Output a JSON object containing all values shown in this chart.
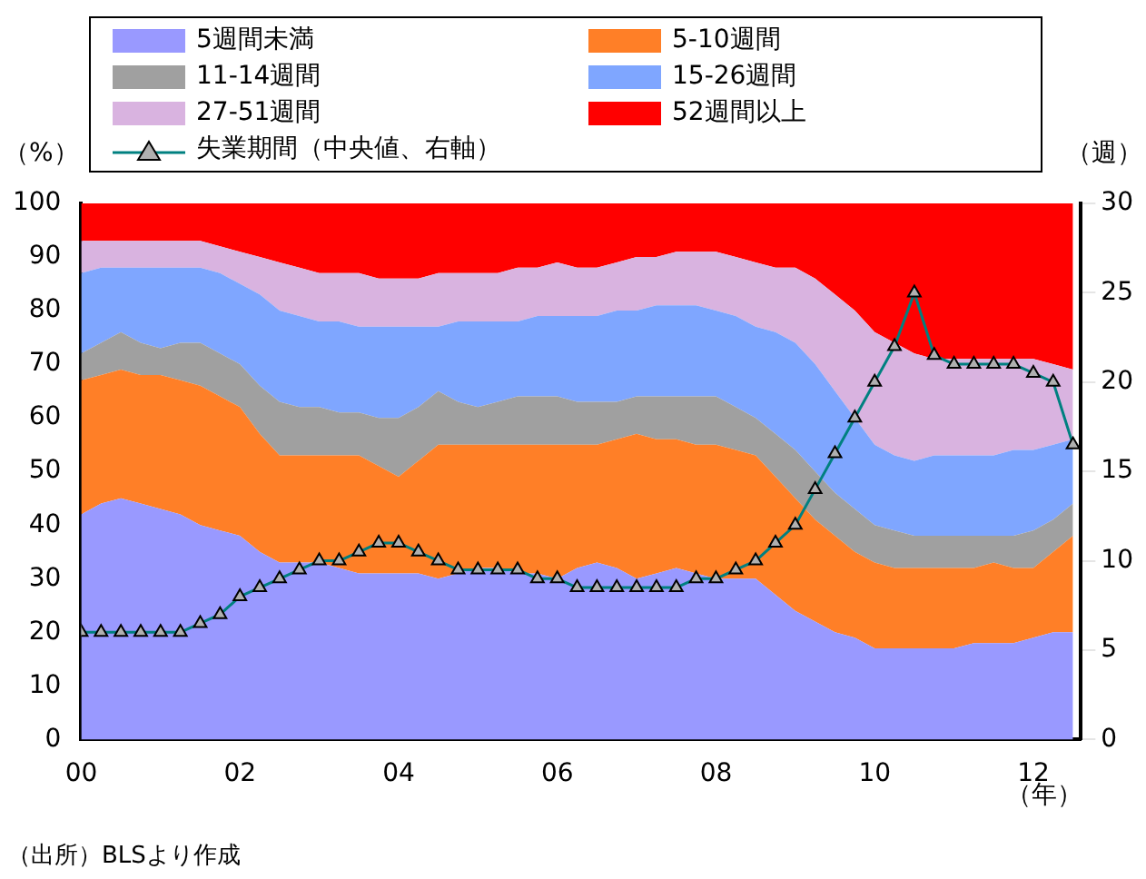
{
  "chart_data": {
    "type": "area",
    "stacked": true,
    "xlabel": "（年）",
    "ylabel": "（%）",
    "y2label": "（週）",
    "annotations": [
      "（出所）BLSより作成"
    ],
    "x": [
      2000,
      2000.25,
      2000.5,
      2000.75,
      2001,
      2001.25,
      2001.5,
      2001.75,
      2002,
      2002.25,
      2002.5,
      2002.75,
      2003,
      2003.25,
      2003.5,
      2003.75,
      2004,
      2004.25,
      2004.5,
      2004.75,
      2005,
      2005.25,
      2005.5,
      2005.75,
      2006,
      2006.25,
      2006.5,
      2006.75,
      2007,
      2007.25,
      2007.5,
      2007.75,
      2008,
      2008.25,
      2008.5,
      2008.75,
      2009,
      2009.25,
      2009.5,
      2009.75,
      2010,
      2010.25,
      2010.5,
      2010.75,
      2011,
      2011.25,
      2011.5,
      2011.75,
      2012,
      2012.25,
      2012.5
    ],
    "xlim": [
      2000,
      2012.6
    ],
    "xticks": [
      {
        "value": 2000,
        "label": "00"
      },
      {
        "value": 2002,
        "label": "02"
      },
      {
        "value": 2004,
        "label": "04"
      },
      {
        "value": 2006,
        "label": "06"
      },
      {
        "value": 2008,
        "label": "08"
      },
      {
        "value": 2010,
        "label": "10"
      },
      {
        "value": 2012,
        "label": "12"
      }
    ],
    "ylim": [
      0,
      100
    ],
    "yticks": [
      0,
      10,
      20,
      30,
      40,
      50,
      60,
      70,
      80,
      90,
      100
    ],
    "y2lim": [
      0,
      30
    ],
    "y2ticks": [
      0,
      5,
      10,
      15,
      20,
      25,
      30
    ],
    "grid": false,
    "legend": "top",
    "series": [
      {
        "name": "5週間未満",
        "color": "#9999ff",
        "values": [
          42,
          44,
          45,
          44,
          43,
          42,
          40,
          39,
          38,
          35,
          33,
          33,
          33,
          32,
          31,
          31,
          31,
          31,
          30,
          31,
          32,
          32,
          31,
          31,
          30,
          32,
          33,
          32,
          30,
          31,
          32,
          31,
          30,
          30,
          30,
          27,
          24,
          22,
          20,
          19,
          17,
          17,
          17,
          17,
          17,
          18,
          18,
          18,
          19,
          20,
          20
        ]
      },
      {
        "name": "5-10週間",
        "color": "#ff7f27",
        "values": [
          25,
          24,
          24,
          24,
          25,
          25,
          26,
          25,
          24,
          22,
          20,
          20,
          20,
          21,
          22,
          20,
          18,
          21,
          25,
          24,
          23,
          23,
          24,
          24,
          25,
          23,
          22,
          24,
          27,
          25,
          24,
          24,
          25,
          24,
          23,
          22,
          21,
          19,
          18,
          16,
          16,
          15,
          15,
          15,
          15,
          14,
          15,
          14,
          13,
          15,
          18
        ]
      },
      {
        "name": "11-14週間",
        "color": "#a0a0a0",
        "values": [
          5,
          6,
          7,
          6,
          5,
          7,
          8,
          8,
          8,
          9,
          10,
          9,
          9,
          8,
          8,
          9,
          11,
          10,
          10,
          8,
          7,
          8,
          9,
          9,
          9,
          8,
          8,
          7,
          7,
          8,
          8,
          9,
          9,
          8,
          7,
          8,
          9,
          9,
          8,
          8,
          7,
          7,
          6,
          6,
          6,
          6,
          5,
          6,
          7,
          6,
          6
        ]
      },
      {
        "name": "15-26週間",
        "color": "#7fa6ff",
        "values": [
          15,
          14,
          12,
          14,
          15,
          14,
          14,
          15,
          15,
          17,
          17,
          17,
          16,
          17,
          16,
          17,
          17,
          15,
          12,
          15,
          16,
          15,
          14,
          15,
          15,
          16,
          16,
          17,
          16,
          17,
          17,
          17,
          16,
          17,
          17,
          19,
          20,
          20,
          19,
          17,
          15,
          14,
          14,
          15,
          15,
          15,
          15,
          16,
          15,
          14,
          12
        ]
      },
      {
        "name": "27-51週間",
        "color": "#d9b3e0",
        "values": [
          6,
          5,
          5,
          5,
          5,
          5,
          5,
          5,
          6,
          7,
          9,
          9,
          9,
          9,
          10,
          9,
          9,
          9,
          10,
          9,
          9,
          9,
          10,
          9,
          10,
          9,
          9,
          9,
          10,
          9,
          10,
          10,
          11,
          11,
          12,
          12,
          14,
          16,
          18,
          20,
          21,
          21,
          20,
          18,
          18,
          18,
          18,
          17,
          17,
          15,
          13
        ]
      },
      {
        "name": "52週間以上",
        "color": "#ff0000",
        "values": [
          7,
          7,
          7,
          7,
          7,
          7,
          7,
          8,
          9,
          10,
          11,
          12,
          13,
          13,
          13,
          14,
          14,
          14,
          13,
          13,
          13,
          13,
          12,
          12,
          11,
          12,
          12,
          11,
          10,
          10,
          9,
          9,
          9,
          10,
          11,
          12,
          12,
          14,
          17,
          20,
          24,
          26,
          28,
          29,
          29,
          29,
          29,
          29,
          29,
          30,
          31
        ]
      },
      {
        "name": "失業期間（中央値、右軸）",
        "type": "line",
        "axis": "y2",
        "color": "#008080",
        "marker": "triangle",
        "values": [
          6,
          6,
          6,
          6,
          6,
          6,
          6.5,
          7,
          8,
          8.5,
          9,
          9.5,
          10,
          10,
          10.5,
          11,
          11,
          10.5,
          10,
          9.5,
          9.5,
          9.5,
          9.5,
          9,
          9,
          8.5,
          8.5,
          8.5,
          8.5,
          8.5,
          8.5,
          9,
          9,
          9.5,
          10,
          11,
          12,
          14,
          16,
          18,
          20,
          22,
          25,
          21.5,
          21,
          21,
          21,
          21,
          20.5,
          20,
          16.5
        ]
      }
    ]
  }
}
